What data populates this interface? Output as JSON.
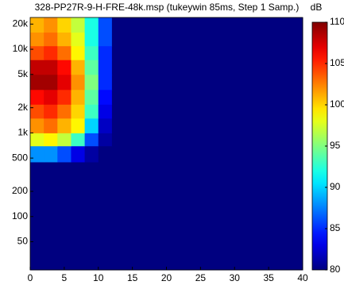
{
  "chart_data": {
    "type": "heatmap",
    "title": "328-PP27R-9-H-FRE-48k.msp (tukeywin 85ms, Step 1 Samp.)",
    "colormap": "jet",
    "x_bins": [
      0,
      2,
      4,
      6,
      8,
      10,
      12,
      14,
      16,
      18,
      20,
      22,
      24,
      26,
      28,
      30,
      32,
      34,
      36,
      38,
      40
    ],
    "y_bins": [
      23,
      40,
      70,
      130,
      250,
      450,
      700,
      1000,
      1500,
      2200,
      3300,
      5000,
      7500,
      11000,
      16000,
      24000
    ],
    "z": [
      [
        80,
        80,
        80,
        80,
        80,
        80,
        80,
        80,
        80,
        80,
        80,
        80,
        80,
        80,
        80,
        80,
        80,
        80,
        80,
        80
      ],
      [
        80,
        80,
        80,
        80,
        80,
        80,
        80,
        80,
        80,
        80,
        80,
        80,
        80,
        80,
        80,
        80,
        80,
        80,
        80,
        80
      ],
      [
        80,
        80,
        80,
        80,
        80,
        80,
        80,
        80,
        80,
        80,
        80,
        80,
        80,
        80,
        80,
        80,
        80,
        80,
        80,
        80
      ],
      [
        80,
        80,
        80,
        80,
        80,
        80,
        80,
        80,
        80,
        80,
        80,
        80,
        80,
        80,
        80,
        80,
        80,
        80,
        80,
        80
      ],
      [
        80,
        80,
        80,
        80,
        80,
        80,
        80,
        80,
        80,
        80,
        80,
        80,
        80,
        80,
        80,
        80,
        80,
        80,
        80,
        80
      ],
      [
        88,
        88,
        86,
        83,
        81,
        80,
        80,
        80,
        80,
        80,
        80,
        80,
        80,
        80,
        80,
        80,
        80,
        80,
        80,
        80
      ],
      [
        98,
        99,
        97,
        93,
        86,
        81,
        80,
        80,
        80,
        80,
        80,
        80,
        80,
        80,
        80,
        80,
        80,
        80,
        80,
        80
      ],
      [
        102,
        103,
        101,
        99,
        90,
        82,
        80,
        80,
        80,
        80,
        80,
        80,
        80,
        80,
        80,
        80,
        80,
        80,
        80,
        80
      ],
      [
        104,
        105,
        103,
        100,
        93,
        83,
        80,
        80,
        80,
        80,
        80,
        80,
        80,
        80,
        80,
        80,
        80,
        80,
        80,
        80
      ],
      [
        106,
        107,
        105,
        101,
        94,
        84,
        80,
        80,
        80,
        80,
        80,
        80,
        80,
        80,
        80,
        80,
        80,
        80,
        80,
        80
      ],
      [
        109,
        109,
        107,
        102,
        95,
        85,
        80,
        80,
        80,
        80,
        80,
        80,
        80,
        80,
        80,
        80,
        80,
        80,
        80,
        80
      ],
      [
        108,
        108,
        106,
        101,
        94,
        85,
        80,
        80,
        80,
        80,
        80,
        80,
        80,
        80,
        80,
        80,
        80,
        80,
        80,
        80
      ],
      [
        104,
        105,
        103,
        99,
        93,
        85,
        80,
        80,
        80,
        80,
        80,
        80,
        80,
        80,
        80,
        80,
        80,
        80,
        80,
        80
      ],
      [
        102,
        103,
        101,
        98,
        92,
        86,
        80,
        80,
        80,
        80,
        80,
        80,
        80,
        80,
        80,
        80,
        80,
        80,
        80,
        80
      ],
      [
        101,
        102,
        100,
        97,
        92,
        86,
        80,
        80,
        80,
        80,
        80,
        80,
        80,
        80,
        80,
        80,
        80,
        80,
        80,
        80
      ]
    ],
    "xlim": [
      0,
      40
    ],
    "xticks": [
      0,
      5,
      10,
      15,
      20,
      25,
      30,
      35,
      40
    ],
    "ylim": [
      23,
      24000
    ],
    "yscale": "log",
    "yticks": [
      50,
      100,
      200,
      500,
      {
        "value": 1000,
        "label": "1k"
      },
      {
        "value": 2000,
        "label": "2k"
      },
      {
        "value": 5000,
        "label": "5k"
      },
      {
        "value": 10000,
        "label": "10k"
      },
      {
        "value": 20000,
        "label": "20k"
      }
    ],
    "colorbar": {
      "label": "dB",
      "lim": [
        80,
        110
      ],
      "ticks": [
        80,
        85,
        90,
        95,
        100,
        105,
        110
      ]
    }
  }
}
